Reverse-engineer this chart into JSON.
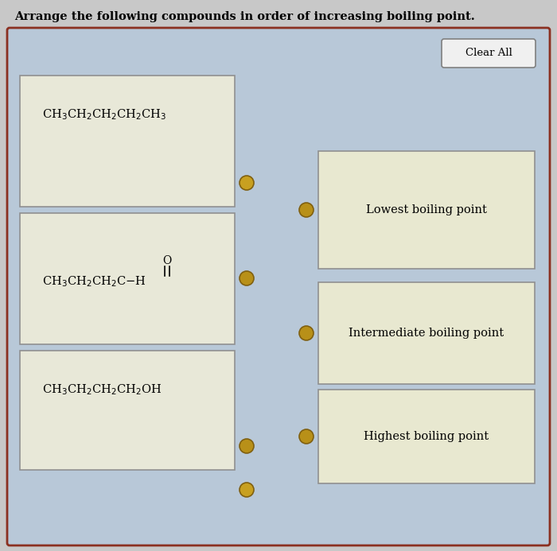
{
  "title": "Arrange the following compounds in order of increasing boiling point.",
  "title_fontsize": 10.5,
  "page_bg": "#c8c8c8",
  "outer_bg": "#b8c8d8",
  "outer_border": "#a0a0a0",
  "left_box_bg": "#e8e8d8",
  "left_box_border": "#909090",
  "right_box_bg": "#e8e8d0",
  "right_box_border": "#909090",
  "right_labels": [
    "Lowest boiling point",
    "Intermediate boiling point",
    "Highest boiling point"
  ],
  "dot_color_left": "#c8a020",
  "dot_color_right": "#b89018",
  "clear_all_text": "Clear All",
  "clear_all_bg": "#f0f0f0",
  "clear_all_border": "#909090",
  "fig_width": 7.0,
  "fig_height": 6.93
}
